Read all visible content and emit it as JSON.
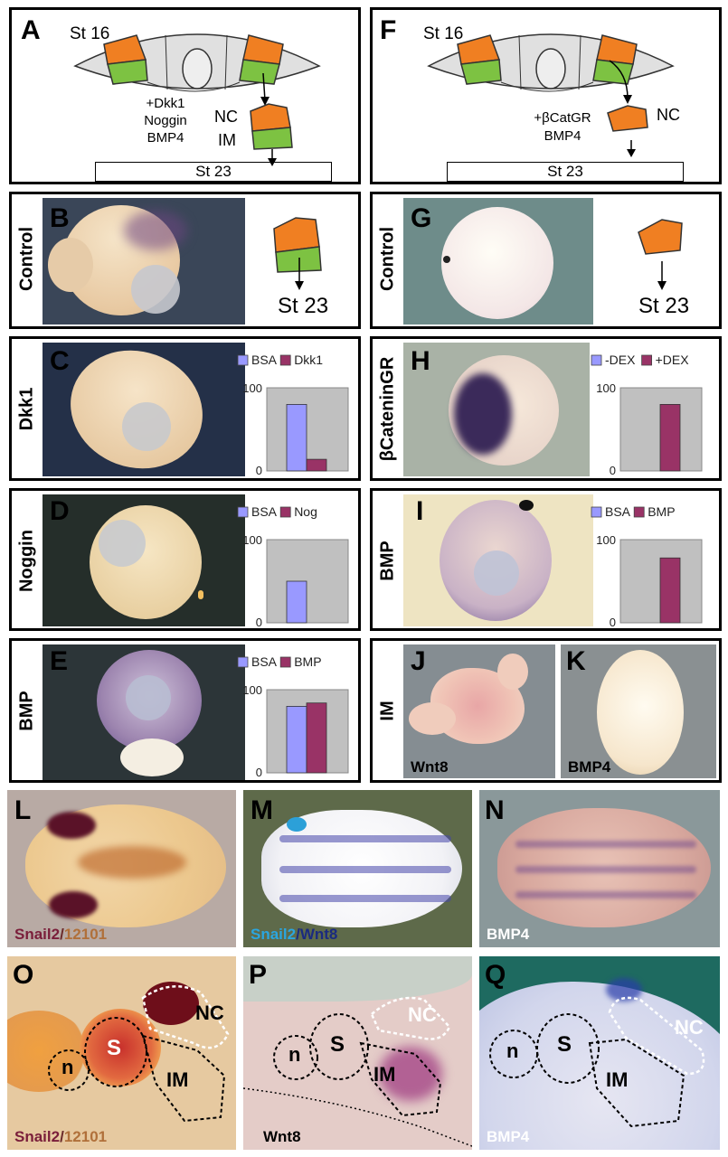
{
  "colors": {
    "nc_orange": "#F07F22",
    "im_green": "#7DC242",
    "bsa_bar": "#9999FF",
    "treat_bar": "#993366",
    "chart_bg": "#C0C0C0",
    "embryo": "#F3DDB8",
    "stain": "#5A3C86"
  },
  "panels": {
    "A": {
      "letter": "A",
      "stage_top": "St 16",
      "treatments": [
        "+Dkk1",
        "Noggin",
        "BMP4"
      ],
      "nc": "NC",
      "im": "IM",
      "stage_bottom": "St 23"
    },
    "F": {
      "letter": "F",
      "stage_top": "St 16",
      "treatments": [
        "+βCatGR",
        "BMP4"
      ],
      "nc": "NC",
      "stage_bottom": "St 23"
    },
    "B": {
      "letter": "B",
      "label": "Control",
      "stage": "St 23"
    },
    "G": {
      "letter": "G",
      "label": "Control",
      "stage": "St 23"
    },
    "C": {
      "letter": "C",
      "label": "Dkk1"
    },
    "D": {
      "letter": "D",
      "label": "Noggin"
    },
    "E": {
      "letter": "E",
      "label": "BMP"
    },
    "H": {
      "letter": "H",
      "label": "βCateninGR"
    },
    "I": {
      "letter": "I",
      "label": "BMP"
    },
    "IM": {
      "label": "IM",
      "J": "J",
      "K": "K",
      "J_caption": "Wnt8",
      "K_caption": "BMP4"
    },
    "L": {
      "letter": "L",
      "caption_a": "Snail2",
      "caption_sep": "/",
      "caption_b": "12101"
    },
    "M": {
      "letter": "M",
      "caption_a": "Snail2",
      "caption_sep": "/",
      "caption_b": "Wnt8"
    },
    "N": {
      "letter": "N",
      "caption": "BMP4"
    },
    "O": {
      "letter": "O",
      "n": "n",
      "s": "S",
      "nc": "NC",
      "im": "IM",
      "caption_a": "Snail2",
      "caption_sep": "/",
      "caption_b": "12101"
    },
    "P": {
      "letter": "P",
      "n": "n",
      "s": "S",
      "nc": "NC",
      "im": "IM",
      "caption": "Wnt8"
    },
    "Q": {
      "letter": "Q",
      "n": "n",
      "s": "S",
      "nc": "NC",
      "im": "IM",
      "caption": "BMP4"
    }
  },
  "chart_data": [
    {
      "type": "bar",
      "panel": "C",
      "series": [
        {
          "name": "BSA",
          "values": [
            80
          ]
        },
        {
          "name": "Dkk1",
          "values": [
            14
          ]
        }
      ],
      "ylim": [
        0,
        100
      ],
      "ticks": [
        "100",
        "0"
      ]
    },
    {
      "type": "bar",
      "panel": "D",
      "series": [
        {
          "name": "BSA",
          "values": [
            50
          ]
        },
        {
          "name": "Nog",
          "values": [
            0
          ]
        }
      ],
      "ylim": [
        0,
        100
      ],
      "ticks": [
        "100",
        "0"
      ]
    },
    {
      "type": "bar",
      "panel": "E",
      "series": [
        {
          "name": "BSA",
          "values": [
            80
          ]
        },
        {
          "name": "BMP",
          "values": [
            84
          ]
        }
      ],
      "ylim": [
        0,
        100
      ],
      "ticks": [
        "100",
        "0"
      ]
    },
    {
      "type": "bar",
      "panel": "H",
      "series": [
        {
          "name": "-DEX",
          "values": [
            0
          ]
        },
        {
          "name": "+DEX",
          "values": [
            80
          ]
        }
      ],
      "ylim": [
        0,
        100
      ],
      "ticks": [
        "100",
        "0"
      ]
    },
    {
      "type": "bar",
      "panel": "I",
      "series": [
        {
          "name": "BSA",
          "values": [
            0
          ]
        },
        {
          "name": "BMP",
          "values": [
            78
          ]
        }
      ],
      "ylim": [
        0,
        100
      ],
      "ticks": [
        "100",
        "0"
      ]
    }
  ]
}
